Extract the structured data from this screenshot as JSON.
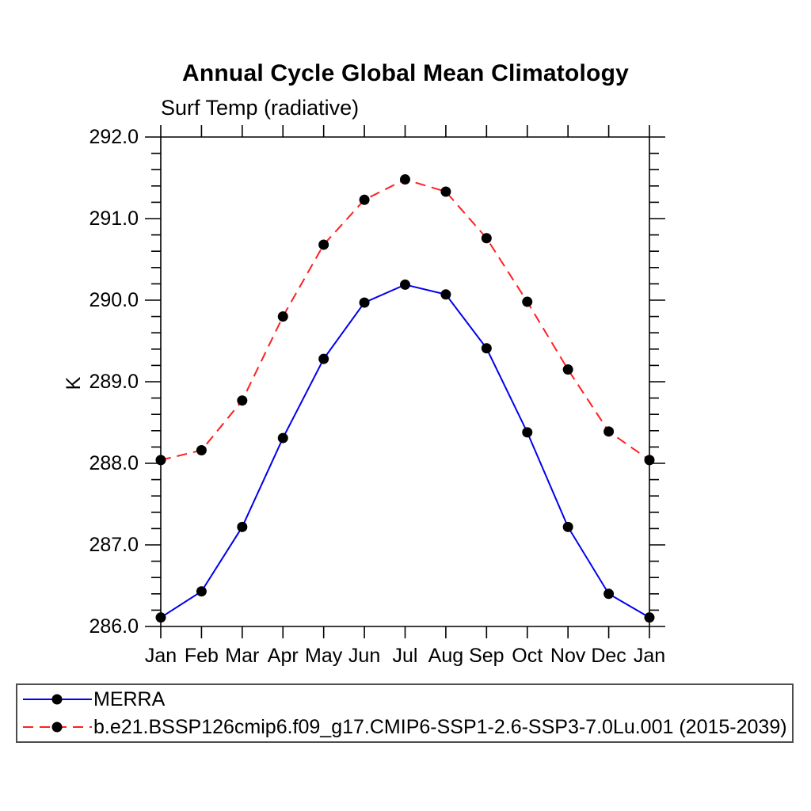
{
  "title": "Annual Cycle Global Mean Climatology",
  "subtitle": "Surf Temp (radiative)",
  "chart_data": {
    "type": "line",
    "title": "Annual Cycle Global Mean Climatology",
    "subtitle": "Surf Temp (radiative)",
    "xlabel": "",
    "ylabel": "K",
    "categories": [
      "Jan",
      "Feb",
      "Mar",
      "Apr",
      "May",
      "Jun",
      "Jul",
      "Aug",
      "Sep",
      "Oct",
      "Nov",
      "Dec",
      "Jan"
    ],
    "series": [
      {
        "name": "MERRA",
        "color": "#0000ee",
        "line_style": "solid",
        "marker": "filled-circle",
        "marker_color": "#000000",
        "values": [
          286.11,
          286.43,
          287.22,
          288.31,
          289.28,
          289.97,
          290.19,
          290.07,
          289.41,
          288.38,
          287.22,
          286.4,
          286.11
        ]
      },
      {
        "name": "b.e21.BSSP126cmip6.f09_g17.CMIP6-SSP1-2.6-SSP3-7.0Lu.001 (2015-2039)",
        "color": "#ff1f1f",
        "line_style": "dashed",
        "marker": "filled-circle",
        "marker_color": "#000000",
        "values": [
          288.04,
          288.16,
          288.77,
          289.8,
          290.68,
          291.23,
          291.48,
          291.33,
          290.76,
          289.98,
          289.15,
          288.39,
          288.04
        ]
      }
    ],
    "ylim": [
      286.0,
      292.0
    ],
    "ytick_major": 1.0,
    "ytick_minor": 0.2,
    "ytick_label_format": "one-decimal",
    "grid": false,
    "axis_color": "#000000",
    "legend_position": "bottom-box"
  }
}
